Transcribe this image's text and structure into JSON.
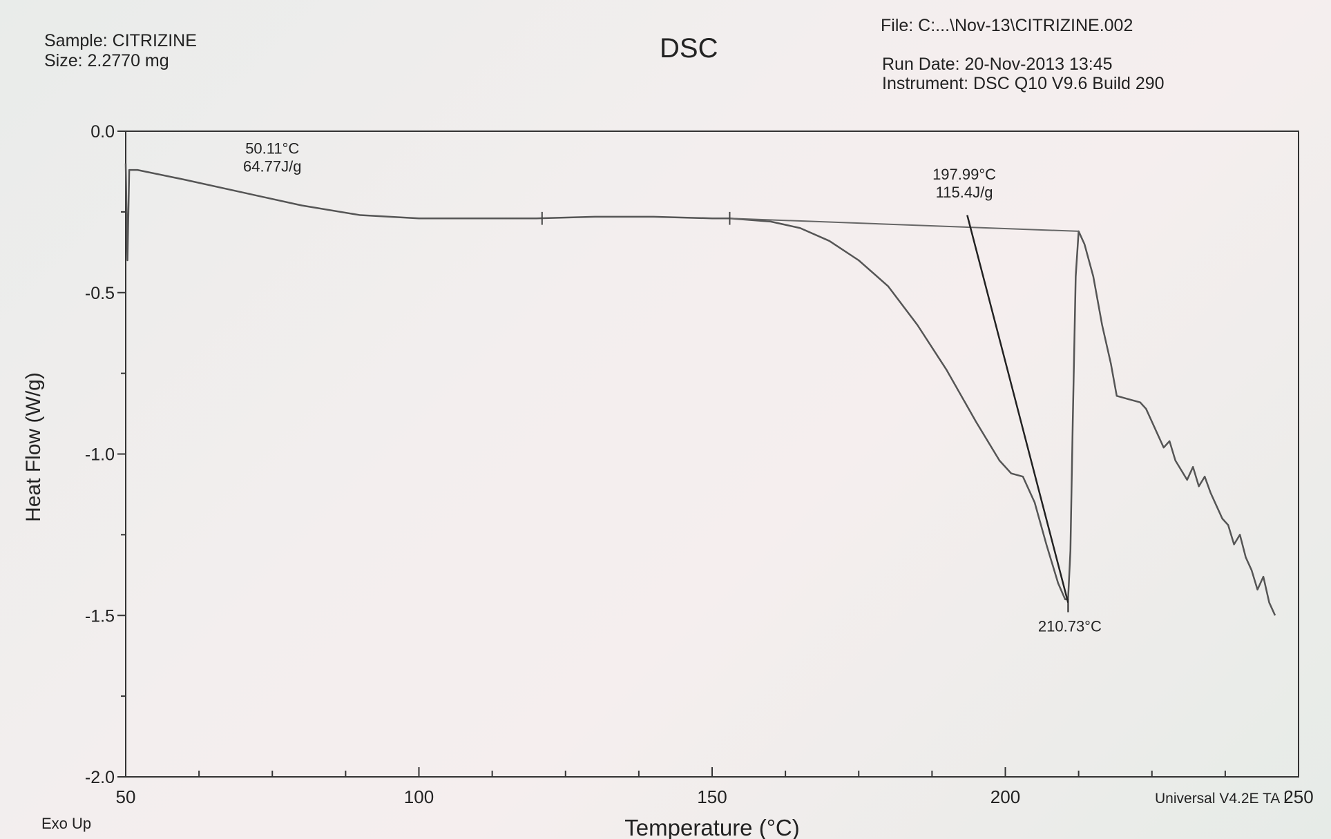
{
  "header": {
    "sample": "Sample: CITRIZINE",
    "size": "Size:  2.2770 mg",
    "title": "DSC",
    "file": "File: C:...\\Nov-13\\CITRIZINE.002",
    "run_date": "Run Date: 20-Nov-2013 13:45",
    "instrument": "Instrument: DSC Q10 V9.6 Build 290"
  },
  "footer": {
    "exo": "Exo Up",
    "software": "Universal V4.2E TA I"
  },
  "chart_data": {
    "type": "line",
    "title": "DSC",
    "xlabel": "Temperature (°C)",
    "ylabel": "Heat Flow (W/g)",
    "xlim": [
      50,
      250
    ],
    "ylim": [
      -2.0,
      0.0
    ],
    "xticks": [
      "50",
      "100",
      "150",
      "200",
      "250"
    ],
    "yticks": [
      "0.0",
      "-0.5",
      "-1.0",
      "-1.5",
      "-2.0"
    ],
    "grid": false,
    "line_color": "#555555",
    "series": [
      {
        "x": [
          50,
          50.3,
          50.6,
          52,
          60,
          70,
          80,
          90,
          100,
          110,
          120,
          130,
          140,
          150,
          153,
          160,
          165,
          170,
          175,
          180,
          185,
          190,
          195,
          199,
          201,
          203,
          205,
          207,
          209,
          210.2,
          210.7,
          211.1,
          211.5,
          212,
          212.5,
          213.5,
          215,
          216.5,
          218,
          219,
          221,
          223,
          224,
          225,
          226,
          227,
          228,
          229,
          230,
          231,
          232,
          233,
          234,
          235,
          236,
          237,
          238,
          239,
          240,
          241,
          242,
          243,
          244,
          245,
          246
        ],
        "y": [
          -0.1,
          -0.4,
          -0.12,
          -0.12,
          -0.15,
          -0.19,
          -0.23,
          -0.26,
          -0.27,
          -0.27,
          -0.27,
          -0.265,
          -0.265,
          -0.27,
          -0.27,
          -0.28,
          -0.3,
          -0.34,
          -0.4,
          -0.48,
          -0.6,
          -0.74,
          -0.9,
          -1.02,
          -1.06,
          -1.07,
          -1.15,
          -1.28,
          -1.4,
          -1.45,
          -1.45,
          -1.3,
          -0.9,
          -0.45,
          -0.31,
          -0.35,
          -0.45,
          -0.6,
          -0.72,
          -0.82,
          -0.83,
          -0.84,
          -0.86,
          -0.9,
          -0.94,
          -0.98,
          -0.96,
          -1.02,
          -1.05,
          -1.08,
          -1.04,
          -1.1,
          -1.07,
          -1.12,
          -1.16,
          -1.2,
          -1.22,
          -1.28,
          -1.25,
          -1.32,
          -1.36,
          -1.42,
          -1.38,
          -1.46,
          -1.5
        ]
      }
    ],
    "baseline": {
      "x": [
        153,
        212.5
      ],
      "y": [
        -0.27,
        -0.31
      ]
    },
    "baseline_ticks": [
      121,
      153
    ],
    "tangent": {
      "x": [
        193.5,
        210.7
      ],
      "y": [
        -0.26,
        -1.46
      ]
    },
    "annotations": [
      {
        "lines": [
          "50.11°C",
          "64.77J/g"
        ],
        "x": 75,
        "y": -0.07
      },
      {
        "lines": [
          "197.99°C",
          "115.4J/g"
        ],
        "x": 193,
        "y": -0.15
      },
      {
        "lines": [
          "210.73°C"
        ],
        "x": 211,
        "y": -1.55
      }
    ]
  }
}
